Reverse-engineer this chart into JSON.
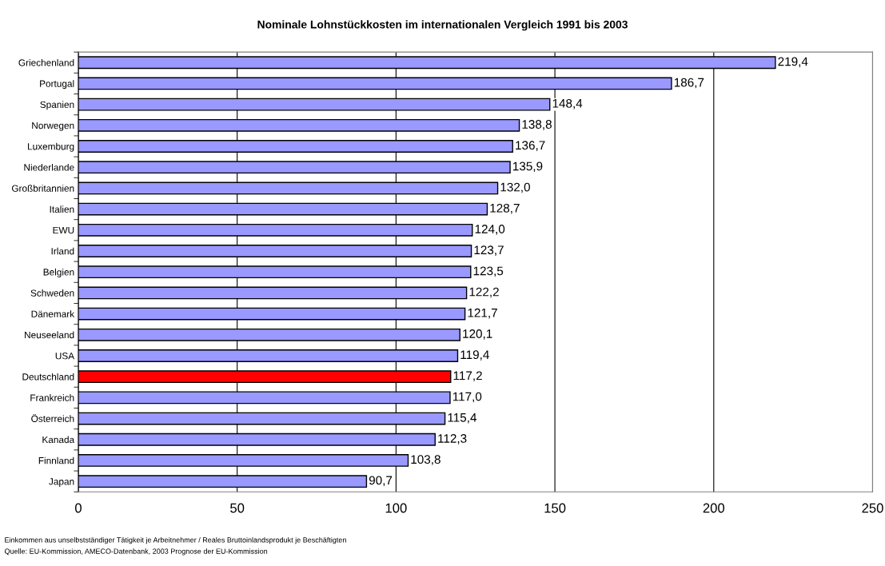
{
  "chart_data": {
    "type": "bar",
    "orientation": "horizontal",
    "title": "Nominale Lohnstückkosten im internationalen Vergleich 1991 bis 2003",
    "categories": [
      "Griechenland",
      "Portugal",
      "Spanien",
      "Norwegen",
      "Luxemburg",
      "Niederlande",
      "Großbritannien",
      "Italien",
      "EWU",
      "Irland",
      "Belgien",
      "Schweden",
      "Dänemark",
      "Neuseeland",
      "USA",
      "Deutschland",
      "Frankreich",
      "Österreich",
      "Kanada",
      "Finnland",
      "Japan"
    ],
    "values": [
      219.4,
      186.7,
      148.4,
      138.8,
      136.7,
      135.9,
      132.0,
      128.7,
      124.0,
      123.7,
      123.5,
      122.2,
      121.7,
      120.1,
      119.4,
      117.2,
      117.0,
      115.4,
      112.3,
      103.8,
      90.7
    ],
    "value_labels": [
      "219,4",
      "186,7",
      "148,4",
      "138,8",
      "136,7",
      "135,9",
      "132,0",
      "128,7",
      "124,0",
      "123,7",
      "123,5",
      "122,2",
      "121,7",
      "120,1",
      "119,4",
      "117,2",
      "117,0",
      "115,4",
      "112,3",
      "103,8",
      "90,7"
    ],
    "colors": [
      "#9999ff",
      "#9999ff",
      "#9999ff",
      "#9999ff",
      "#9999ff",
      "#9999ff",
      "#9999ff",
      "#9999ff",
      "#9999ff",
      "#9999ff",
      "#9999ff",
      "#9999ff",
      "#9999ff",
      "#9999ff",
      "#9999ff",
      "#ff0000",
      "#9999ff",
      "#9999ff",
      "#9999ff",
      "#9999ff",
      "#9999ff"
    ],
    "xlim": [
      0,
      250
    ],
    "xticks": [
      0,
      50,
      100,
      150,
      200,
      250
    ],
    "grid": "x",
    "annotations": [
      "Einkommen aus unselbstständiger Tätigkeit je Arbeitnehmer / Reales Bruttoinlandsprodukt je Beschäftigten",
      "Quelle: EU-Kommission, AMECO-Datenbank, 2003 Prognose der EU-Kommission"
    ]
  }
}
